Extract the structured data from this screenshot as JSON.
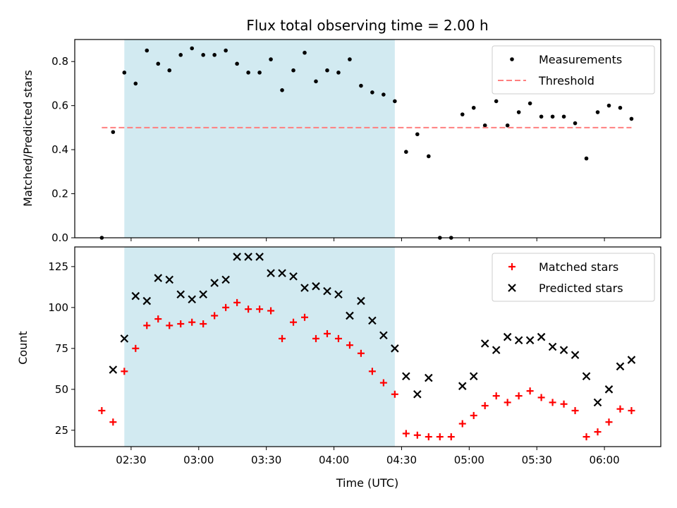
{
  "chart_data": [
    {
      "type": "scatter",
      "title": "Flux total observing time = 2.00 h",
      "xlabel": "",
      "ylabel": "Matched/Predicted stars",
      "ylim": [
        0,
        0.9
      ],
      "xlim": [
        "02:05",
        "06:25"
      ],
      "yticks": [
        "0.0",
        "0.2",
        "0.4",
        "0.6",
        "0.8"
      ],
      "shaded_region": {
        "x_start": "02:27",
        "x_end": "04:27",
        "color": "#add8e6"
      },
      "legend_position": "top-right",
      "series": [
        {
          "name": "Measurements",
          "marker": "dot",
          "color": "#000000",
          "x": [
            "02:17",
            "02:22",
            "02:27",
            "02:32",
            "02:37",
            "02:42",
            "02:47",
            "02:52",
            "02:57",
            "03:02",
            "03:07",
            "03:12",
            "03:17",
            "03:22",
            "03:27",
            "03:32",
            "03:37",
            "03:42",
            "03:47",
            "03:52",
            "03:57",
            "04:02",
            "04:07",
            "04:12",
            "04:17",
            "04:22",
            "04:27",
            "04:32",
            "04:37",
            "04:42",
            "04:47",
            "04:52",
            "04:57",
            "05:02",
            "05:07",
            "05:12",
            "05:17",
            "05:22",
            "05:27",
            "05:32",
            "05:37",
            "05:42",
            "05:47",
            "05:52",
            "05:57",
            "06:02",
            "06:07",
            "06:12"
          ],
          "y": [
            0.0,
            0.48,
            0.75,
            0.7,
            0.85,
            0.79,
            0.76,
            0.83,
            0.86,
            0.83,
            0.83,
            0.85,
            0.79,
            0.75,
            0.75,
            0.81,
            0.67,
            0.76,
            0.84,
            0.71,
            0.76,
            0.75,
            0.81,
            0.69,
            0.66,
            0.65,
            0.62,
            0.39,
            0.47,
            0.37,
            0.0,
            0.0,
            0.56,
            0.59,
            0.51,
            0.62,
            0.51,
            0.57,
            0.61,
            0.55,
            0.55,
            0.55,
            0.52,
            0.36,
            0.57,
            0.6,
            0.59,
            0.54
          ]
        },
        {
          "name": "Threshold",
          "style": "dashed",
          "color": "#ff7f7f",
          "x": [
            "02:17",
            "06:12"
          ],
          "y": [
            0.5,
            0.5
          ]
        }
      ]
    },
    {
      "type": "scatter",
      "title": "",
      "xlabel": "Time (UTC)",
      "ylabel": "Count",
      "ylim": [
        15,
        137
      ],
      "xlim": [
        "02:05",
        "06:25"
      ],
      "yticks": [
        "25",
        "50",
        "75",
        "100",
        "125"
      ],
      "xticks": [
        "02:30",
        "03:00",
        "03:30",
        "04:00",
        "04:30",
        "05:00",
        "05:30",
        "06:00"
      ],
      "shaded_region": {
        "x_start": "02:27",
        "x_end": "04:27",
        "color": "#add8e6"
      },
      "legend_position": "top-right",
      "series": [
        {
          "name": "Matched stars",
          "marker": "plus",
          "color": "#ff0000",
          "x": [
            "02:17",
            "02:22",
            "02:27",
            "02:32",
            "02:37",
            "02:42",
            "02:47",
            "02:52",
            "02:57",
            "03:02",
            "03:07",
            "03:12",
            "03:17",
            "03:22",
            "03:27",
            "03:32",
            "03:37",
            "03:42",
            "03:47",
            "03:52",
            "03:57",
            "04:02",
            "04:07",
            "04:12",
            "04:17",
            "04:22",
            "04:27",
            "04:32",
            "04:37",
            "04:42",
            "04:47",
            "04:52",
            "04:57",
            "05:02",
            "05:07",
            "05:12",
            "05:17",
            "05:22",
            "05:27",
            "05:32",
            "05:37",
            "05:42",
            "05:47",
            "05:52",
            "05:57",
            "06:02",
            "06:07",
            "06:12"
          ],
          "y": [
            37,
            30,
            61,
            75,
            89,
            93,
            89,
            90,
            91,
            90,
            95,
            100,
            103,
            99,
            99,
            98,
            81,
            91,
            94,
            81,
            84,
            81,
            77,
            72,
            61,
            54,
            47,
            23,
            22,
            21,
            21,
            21,
            29,
            34,
            40,
            46,
            42,
            46,
            49,
            45,
            42,
            41,
            37,
            21,
            24,
            30,
            38,
            37
          ]
        },
        {
          "name": "Predicted stars",
          "marker": "x",
          "color": "#000000",
          "x": [
            "02:22",
            "02:27",
            "02:32",
            "02:37",
            "02:42",
            "02:47",
            "02:52",
            "02:57",
            "03:02",
            "03:07",
            "03:12",
            "03:17",
            "03:22",
            "03:27",
            "03:32",
            "03:37",
            "03:42",
            "03:47",
            "03:52",
            "03:57",
            "04:02",
            "04:07",
            "04:12",
            "04:17",
            "04:22",
            "04:27",
            "04:32",
            "04:37",
            "04:42",
            "04:57",
            "05:02",
            "05:07",
            "05:12",
            "05:17",
            "05:22",
            "05:27",
            "05:32",
            "05:37",
            "05:42",
            "05:47",
            "05:52",
            "05:57",
            "06:02",
            "06:07",
            "06:12"
          ],
          "y": [
            62,
            81,
            107,
            104,
            118,
            117,
            108,
            105,
            108,
            115,
            117,
            131,
            131,
            131,
            121,
            121,
            119,
            112,
            113,
            110,
            108,
            95,
            104,
            92,
            83,
            75,
            58,
            47,
            57,
            52,
            58,
            78,
            74,
            82,
            80,
            80,
            82,
            76,
            74,
            71,
            58,
            42,
            50,
            64,
            68
          ]
        }
      ]
    }
  ]
}
